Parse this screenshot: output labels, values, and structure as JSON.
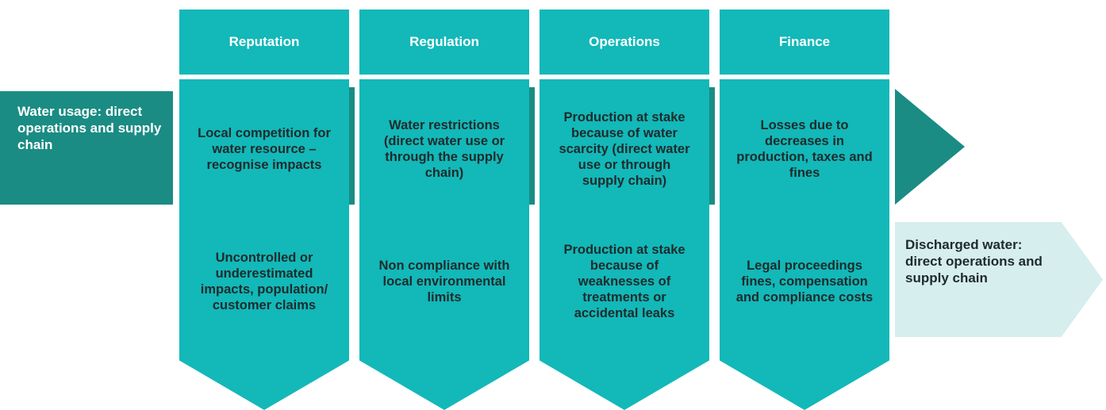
{
  "rows": [
    "Water usage: direct operations and supply chain",
    "Discharged water: direct operations and supply chain"
  ],
  "columns": [
    {
      "title": "Reputation",
      "cells": [
        "Local competition for water resource – recognise impacts",
        "Uncontrolled or underestimated impacts, population/ customer claims"
      ]
    },
    {
      "title": "Regulation",
      "cells": [
        "Water restrictions (direct water use or through the supply chain)",
        "Non compliance with local environmental limits"
      ]
    },
    {
      "title": "Operations",
      "cells": [
        "Production at stake because of water scarcity (direct water use or through supply chain)",
        "Production at stake because of weaknesses of treatments or accidental leaks"
      ]
    },
    {
      "title": "Finance",
      "cells": [
        "Losses due to decreases in production, taxes and fines",
        "Legal proceedings fines, compensation and compliance costs"
      ]
    }
  ]
}
